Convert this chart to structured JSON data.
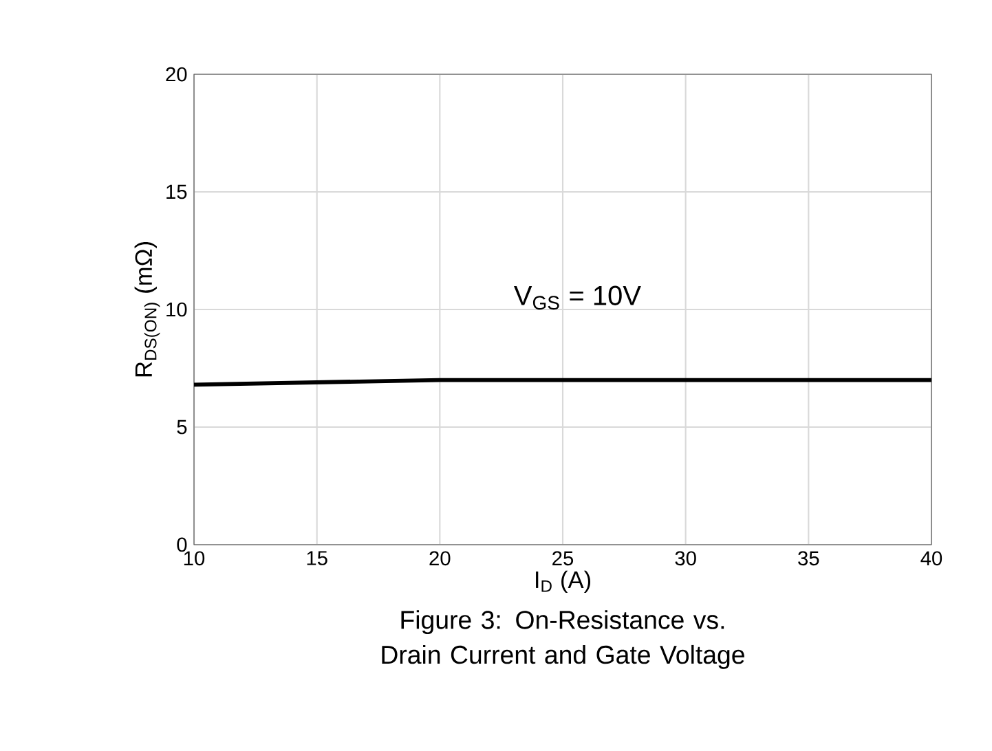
{
  "chart_data": {
    "type": "line",
    "title": "Figure 3: On-Resistance vs. Drain Current and Gate Voltage",
    "xlabel": "I$_{D}$ (A)",
    "ylabel": "R$_{DS(ON)}$ (mΩ)",
    "annotations": [
      "V$_{GS}$ = 10V"
    ],
    "x": [
      10,
      15,
      20,
      25,
      30,
      35,
      40
    ],
    "series": [
      {
        "color": "#000000",
        "values": [
          6.8,
          6.9,
          7.0,
          7.0,
          7.0,
          7.0,
          7.0
        ]
      }
    ],
    "xlim": [
      10,
      40
    ],
    "ylim": [
      0,
      20
    ],
    "xticks": [
      10,
      15,
      20,
      25,
      30,
      35,
      40
    ],
    "yticks": [
      0,
      5,
      10,
      15,
      20
    ],
    "grid": true,
    "marker": "none",
    "line_style": "solid"
  }
}
